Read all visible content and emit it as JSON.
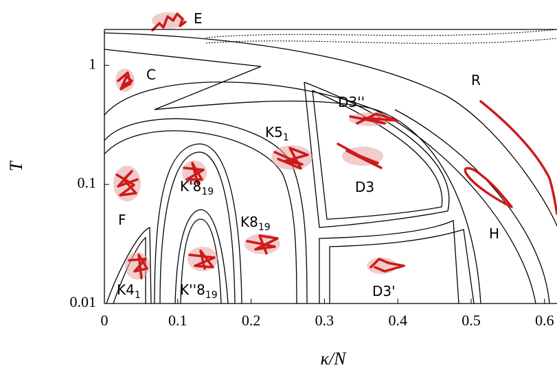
{
  "chart_data": {
    "type": "phase-diagram",
    "xlabel": "κ/N",
    "ylabel": "T",
    "xlim": [
      0,
      0.617
    ],
    "ylim": [
      0.01,
      2
    ],
    "yscale": "log",
    "xticks": [
      0,
      0.1,
      0.2,
      0.3,
      0.4,
      0.5,
      0.6
    ],
    "yticks": [
      0.01,
      0.1,
      1
    ],
    "annotations": [
      {
        "text": "E"
      },
      {
        "text": "C"
      },
      {
        "text": "R"
      },
      {
        "text": "D3''"
      },
      {
        "text": "K5",
        "sub": "1"
      },
      {
        "text": "D3"
      },
      {
        "text": "F"
      },
      {
        "text": "K'8",
        "sub": "19"
      },
      {
        "text": "H"
      },
      {
        "text": "K8",
        "sub": "19"
      },
      {
        "text": "K4",
        "sub": "1"
      },
      {
        "text": "K''8",
        "sub": "19"
      },
      {
        "text": "D3'"
      }
    ]
  }
}
